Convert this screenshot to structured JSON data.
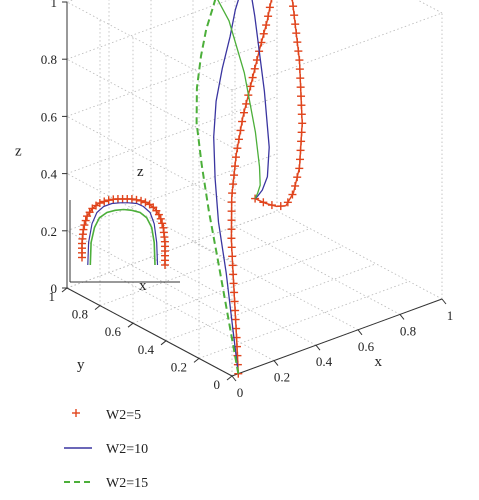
{
  "chart_data": {
    "type": "line",
    "projection": "3d",
    "xlabel": "x",
    "ylabel": "y",
    "zlabel": "z",
    "xlim": [
      0,
      1
    ],
    "ylim": [
      0,
      1
    ],
    "zlim": [
      0,
      1
    ],
    "xticks": [
      "0",
      "0.2",
      "0.4",
      "0.6",
      "0.8",
      "1"
    ],
    "yticks": [
      "0",
      "0.2",
      "0.4",
      "0.6",
      "0.8",
      "1"
    ],
    "zticks": [
      "0",
      "0.2",
      "0.4",
      "0.6",
      "0.8",
      "1"
    ],
    "grid": true,
    "legend_position": "bottom-left",
    "inset_labels": {
      "z": "z",
      "x": "x"
    },
    "series": [
      {
        "name": "W2=5",
        "color": "#e0441c",
        "style": "plus-markers",
        "x": [
          0.03,
          0.06,
          0.11,
          0.17,
          0.25,
          0.35,
          0.46,
          0.57,
          0.68,
          0.78,
          0.86,
          0.93,
          0.98,
          1.0,
          0.99,
          0.95,
          0.9,
          0.84,
          0.78,
          0.72,
          0.66,
          0.6,
          0.55
        ],
        "y": [
          0.0,
          0.05,
          0.13,
          0.22,
          0.32,
          0.42,
          0.52,
          0.61,
          0.7,
          0.78,
          0.85,
          0.9,
          0.93,
          0.95,
          0.9,
          0.8,
          0.72,
          0.66,
          0.62,
          0.59,
          0.57,
          0.56,
          0.56
        ],
        "z": [
          0.0,
          0.12,
          0.25,
          0.36,
          0.46,
          0.55,
          0.62,
          0.68,
          0.74,
          0.79,
          0.84,
          0.88,
          0.91,
          0.93,
          0.8,
          0.6,
          0.42,
          0.3,
          0.24,
          0.22,
          0.24,
          0.27,
          0.3
        ]
      },
      {
        "name": "W2=10",
        "color": "#3a35a0",
        "style": "solid",
        "x": [
          0.03,
          0.05,
          0.09,
          0.14,
          0.21,
          0.29,
          0.38,
          0.48,
          0.58,
          0.66,
          0.72,
          0.76,
          0.78,
          0.76,
          0.72,
          0.68,
          0.64,
          0.6,
          0.57,
          0.55
        ],
        "y": [
          0.0,
          0.06,
          0.15,
          0.26,
          0.37,
          0.48,
          0.58,
          0.67,
          0.75,
          0.82,
          0.86,
          0.89,
          0.9,
          0.83,
          0.72,
          0.64,
          0.6,
          0.58,
          0.57,
          0.56
        ],
        "z": [
          0.0,
          0.14,
          0.29,
          0.42,
          0.52,
          0.61,
          0.68,
          0.74,
          0.8,
          0.85,
          0.89,
          0.92,
          0.93,
          0.8,
          0.58,
          0.42,
          0.34,
          0.31,
          0.3,
          0.3
        ]
      },
      {
        "name": "W2=15",
        "color": "#4caf3a",
        "style": "dashed",
        "x": [
          0.03,
          0.04,
          0.07,
          0.11,
          0.17,
          0.24,
          0.32,
          0.41,
          0.49,
          0.56,
          0.6
        ],
        "y": [
          0.0,
          0.07,
          0.17,
          0.28,
          0.4,
          0.52,
          0.62,
          0.71,
          0.78,
          0.83,
          0.86
        ],
        "z": [
          0.0,
          0.16,
          0.32,
          0.46,
          0.57,
          0.66,
          0.73,
          0.79,
          0.84,
          0.88,
          0.9
        ]
      },
      {
        "name": "W2=15",
        "color": "#4caf3a",
        "style": "solid",
        "x": [
          0.6,
          0.63,
          0.64,
          0.63,
          0.61,
          0.59,
          0.57,
          0.55
        ],
        "y": [
          0.86,
          0.82,
          0.74,
          0.66,
          0.61,
          0.58,
          0.57,
          0.56
        ],
        "z": [
          0.9,
          0.82,
          0.66,
          0.48,
          0.38,
          0.33,
          0.31,
          0.3
        ]
      }
    ],
    "inset_series": [
      {
        "name": "W2=5",
        "u": [
          0.0,
          0.0,
          0.0,
          0.02,
          0.06,
          0.12,
          0.2,
          0.3,
          0.4,
          0.5,
          0.6,
          0.7,
          0.8,
          0.88,
          0.94,
          0.98,
          1.0,
          1.0,
          1.0
        ],
        "z": [
          0.1,
          0.12,
          0.3,
          0.5,
          0.65,
          0.75,
          0.82,
          0.86,
          0.88,
          0.88,
          0.88,
          0.86,
          0.82,
          0.75,
          0.65,
          0.5,
          0.3,
          0.12,
          0.0
        ]
      },
      {
        "name": "W2=10",
        "u": [
          0.07,
          0.08,
          0.12,
          0.18,
          0.26,
          0.36,
          0.46,
          0.56,
          0.66,
          0.74,
          0.82,
          0.87,
          0.9,
          0.91
        ],
        "z": [
          0.0,
          0.3,
          0.55,
          0.7,
          0.78,
          0.82,
          0.83,
          0.83,
          0.82,
          0.78,
          0.7,
          0.55,
          0.3,
          0.0
        ]
      },
      {
        "name": "W2=15",
        "u": [
          0.1,
          0.11,
          0.15,
          0.21,
          0.3,
          0.4,
          0.5,
          0.6,
          0.7,
          0.78,
          0.84,
          0.87,
          0.88
        ],
        "z": [
          0.0,
          0.3,
          0.5,
          0.63,
          0.7,
          0.73,
          0.74,
          0.73,
          0.7,
          0.63,
          0.5,
          0.3,
          0.0
        ]
      }
    ],
    "legend": [
      {
        "label": "W2=5",
        "color": "#e0441c",
        "style": "plus-markers"
      },
      {
        "label": "W2=10",
        "color": "#3a35a0",
        "style": "solid"
      },
      {
        "label": "W2=15",
        "color": "#4caf3a",
        "style": "dashed"
      }
    ]
  }
}
